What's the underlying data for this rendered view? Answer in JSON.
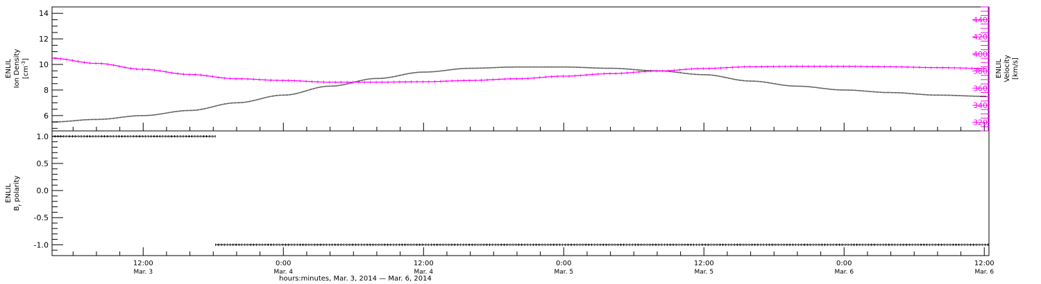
{
  "colors": {
    "density": "#000000",
    "velocity": "#ff00ff",
    "polarity": "#000000",
    "axis": "#000000"
  },
  "x_axis": {
    "title": "hours:minutes, Mar.  3, 2014 — Mar.  6, 2014",
    "range_hours": [
      4.2,
      84.4
    ],
    "ticks": [
      {
        "h": 12,
        "time": "12:00",
        "date": "Mar. 3"
      },
      {
        "h": 24,
        "time": "0:00",
        "date": "Mar. 4"
      },
      {
        "h": 36,
        "time": "12:00",
        "date": "Mar. 4"
      },
      {
        "h": 48,
        "time": "0:00",
        "date": "Mar. 5"
      },
      {
        "h": 60,
        "time": "12:00",
        "date": "Mar. 5"
      },
      {
        "h": 72,
        "time": "0:00",
        "date": "Mar. 6"
      },
      {
        "h": 84,
        "time": "12:00",
        "date": "Mar. 6"
      }
    ]
  },
  "chart_data": [
    {
      "type": "line",
      "panel": "top",
      "y_left": {
        "label_line1": "ENLIL",
        "label_line2": "Ion Density",
        "unit_prefix": "[cm",
        "unit_sup": "-3",
        "unit_suffix": "]",
        "range": [
          4.8,
          14.5
        ],
        "ticks": [
          6,
          8,
          10,
          12,
          14
        ]
      },
      "y_right": {
        "label_line1": "ENLIL",
        "label_line2": "Velocity",
        "unit": "[km/s]",
        "range": [
          310,
          455
        ],
        "ticks": [
          320,
          340,
          360,
          380,
          400,
          420,
          440
        ]
      },
      "series": [
        {
          "axis": "left",
          "x_hours": [
            4.2,
            8,
            12,
            16,
            20,
            24,
            28,
            32,
            36,
            40,
            44,
            48,
            52,
            56,
            60,
            64,
            68,
            72,
            76,
            80,
            84.4
          ],
          "y": [
            5.5,
            5.7,
            6.0,
            6.4,
            7.0,
            7.6,
            8.3,
            8.9,
            9.4,
            9.7,
            9.8,
            9.8,
            9.7,
            9.5,
            9.2,
            8.7,
            8.3,
            8.0,
            7.8,
            7.6,
            7.5
          ]
        },
        {
          "axis": "right",
          "x_hours": [
            4.2,
            8,
            12,
            16,
            20,
            24,
            28,
            32,
            36,
            40,
            44,
            48,
            52,
            56,
            60,
            64,
            68,
            72,
            76,
            80,
            84.4
          ],
          "y": [
            395,
            389,
            382,
            376,
            371,
            369,
            367,
            367,
            367.5,
            369,
            371,
            374,
            377,
            380,
            383,
            385,
            385.5,
            385.5,
            385,
            384,
            383
          ]
        }
      ]
    },
    {
      "type": "scatter",
      "panel": "bottom",
      "y_left": {
        "label_line1": "ENLIL",
        "label_b": "B",
        "label_sub": "r",
        "label_rest": " polarity",
        "range": [
          -1.2,
          1.1
        ],
        "ticks": [
          1.0,
          0.5,
          0.0,
          -0.5,
          -1.0
        ],
        "tick_labels": [
          "1.0",
          "0.5",
          "0.0",
          "-0.5",
          "-1.0"
        ]
      },
      "series": [
        {
          "x_range_hours": [
            4.2,
            18.2
          ],
          "y": 1.0
        },
        {
          "x_range_hours": [
            18.2,
            84.4
          ],
          "y": -1.0
        }
      ]
    }
  ]
}
